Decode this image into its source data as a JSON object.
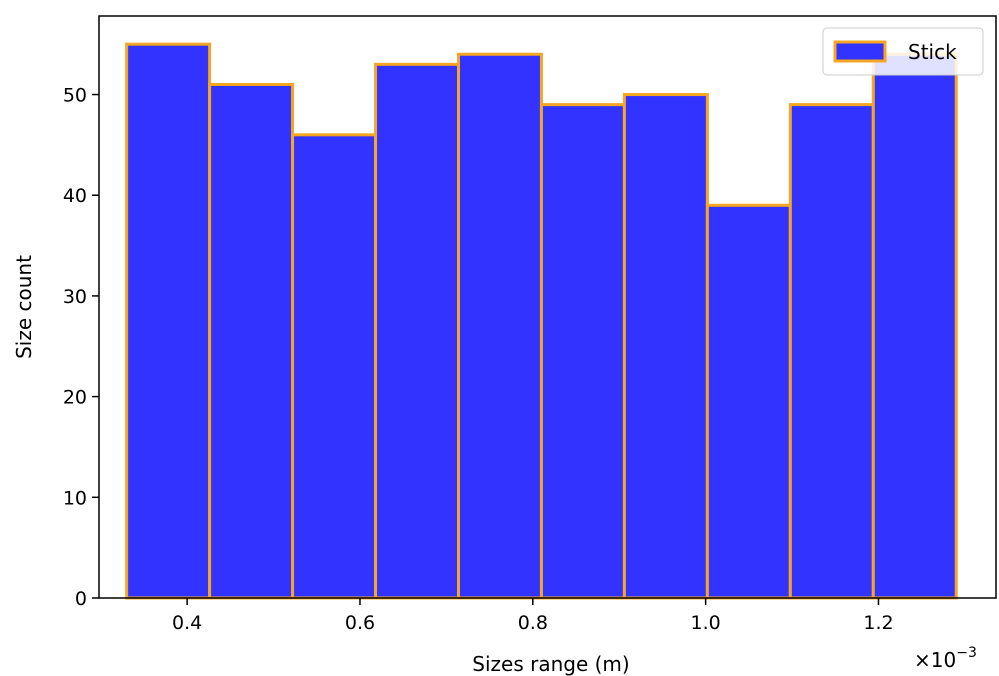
{
  "chart_data": {
    "type": "bar",
    "title": "",
    "xlabel": "Sizes range (m)",
    "ylabel": "Size count",
    "x_offset_label": "×10",
    "x_offset_exponent": "−3",
    "xlim": [
      0.000298,
      0.001336
    ],
    "ylim": [
      0,
      57.8
    ],
    "xticks": [
      0.0004,
      0.0006,
      0.0008,
      0.001,
      0.0012
    ],
    "xtick_labels": [
      "0.4",
      "0.6",
      "0.8",
      "1.0",
      "1.2"
    ],
    "yticks": [
      0,
      10,
      20,
      30,
      40,
      50
    ],
    "ytick_labels": [
      "0",
      "10",
      "20",
      "30",
      "40",
      "50"
    ],
    "bin_edges": [
      0.00033,
      0.000426,
      0.000522,
      0.000618,
      0.000714,
      0.00081,
      0.000906,
      0.001002,
      0.001098,
      0.001194,
      0.00129
    ],
    "series": [
      {
        "name": "Stick",
        "values": [
          55,
          51,
          46,
          53,
          54,
          49,
          50,
          39,
          49,
          54
        ]
      }
    ],
    "legend_position": "top-right",
    "grid": false,
    "colors": {
      "fill": "#3333ff",
      "edge": "#f5a623"
    }
  }
}
